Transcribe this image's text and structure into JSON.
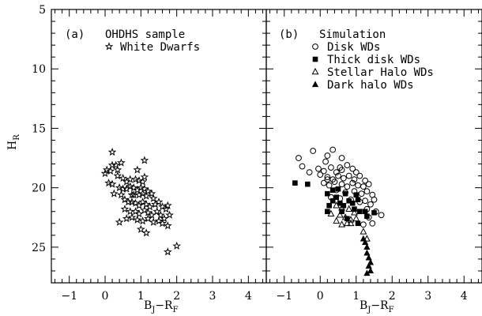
{
  "chart_data": [
    {
      "panel_label": "(a)",
      "type": "scatter",
      "xlabel": "B_J−R_F",
      "ylabel": "H_R",
      "xlim": [
        -1.5,
        4.5
      ],
      "ylim": [
        28,
        5
      ],
      "y_inverted": true,
      "x_ticks": [
        "−1",
        "0",
        "1",
        "2",
        "3",
        "4"
      ],
      "y_ticks": [
        "5",
        "10",
        "15",
        "20",
        "25"
      ],
      "legend": {
        "title": "OHDHS sample",
        "entries": [
          "White Dwarfs"
        ]
      },
      "series": [
        {
          "name": "White Dwarfs",
          "marker": "star-open",
          "points": [
            [
              0.2,
              17.0
            ],
            [
              0.45,
              17.9
            ],
            [
              0.2,
              18.1
            ],
            [
              0.3,
              18.1
            ],
            [
              0.05,
              18.5
            ],
            [
              0.15,
              18.6
            ],
            [
              0.0,
              18.8
            ],
            [
              0.35,
              18.5
            ],
            [
              1.1,
              17.7
            ],
            [
              0.35,
              19.0
            ],
            [
              0.5,
              19.2
            ],
            [
              0.6,
              19.5
            ],
            [
              0.7,
              19.3
            ],
            [
              0.1,
              19.6
            ],
            [
              0.2,
              19.7
            ],
            [
              0.85,
              19.3
            ],
            [
              0.95,
              19.4
            ],
            [
              1.05,
              19.5
            ],
            [
              1.1,
              19.1
            ],
            [
              0.9,
              18.5
            ],
            [
              0.4,
              20.0
            ],
            [
              0.5,
              20.1
            ],
            [
              0.6,
              20.1
            ],
            [
              0.7,
              19.9
            ],
            [
              0.8,
              20.0
            ],
            [
              0.9,
              20.2
            ],
            [
              1.0,
              20.0
            ],
            [
              1.1,
              20.1
            ],
            [
              1.2,
              20.3
            ],
            [
              0.75,
              20.6
            ],
            [
              0.8,
              20.6
            ],
            [
              0.95,
              20.6
            ],
            [
              1.05,
              20.5
            ],
            [
              1.15,
              20.7
            ],
            [
              1.3,
              20.5
            ],
            [
              1.35,
              20.9
            ],
            [
              0.25,
              20.5
            ],
            [
              0.45,
              20.6
            ],
            [
              0.55,
              21.0
            ],
            [
              0.65,
              21.2
            ],
            [
              0.75,
              21.2
            ],
            [
              0.85,
              21.3
            ],
            [
              0.95,
              21.5
            ],
            [
              1.05,
              21.2
            ],
            [
              1.15,
              21.4
            ],
            [
              1.25,
              21.6
            ],
            [
              1.4,
              21.4
            ],
            [
              1.5,
              21.2
            ],
            [
              1.6,
              21.6
            ],
            [
              1.7,
              21.8
            ],
            [
              1.75,
              21.5
            ],
            [
              0.55,
              21.8
            ],
            [
              0.7,
              22.0
            ],
            [
              0.85,
              22.0
            ],
            [
              0.95,
              22.2
            ],
            [
              1.1,
              21.9
            ],
            [
              1.2,
              22.1
            ],
            [
              1.3,
              22.3
            ],
            [
              1.45,
              22.0
            ],
            [
              1.55,
              22.3
            ],
            [
              1.65,
              22.6
            ],
            [
              0.6,
              22.6
            ],
            [
              0.75,
              22.5
            ],
            [
              0.9,
              22.7
            ],
            [
              1.05,
              22.8
            ],
            [
              1.2,
              22.6
            ],
            [
              1.35,
              22.9
            ],
            [
              1.5,
              22.8
            ],
            [
              1.6,
              23.0
            ],
            [
              1.75,
              23.2
            ],
            [
              1.8,
              22.3
            ],
            [
              0.4,
              22.9
            ],
            [
              1.0,
              23.5
            ],
            [
              1.15,
              23.8
            ],
            [
              2.0,
              24.9
            ],
            [
              1.75,
              25.4
            ]
          ]
        }
      ]
    },
    {
      "panel_label": "(b)",
      "type": "scatter",
      "xlabel": "B_J−R_F",
      "ylabel": "",
      "xlim": [
        -1.5,
        4.5
      ],
      "ylim": [
        28,
        5
      ],
      "y_inverted": true,
      "x_ticks": [
        "−1",
        "0",
        "1",
        "2",
        "3",
        "4"
      ],
      "legend": {
        "title": "Simulation",
        "entries": [
          "Disk WDs",
          "Thick disk WDs",
          "Stellar Halo WDs",
          "Dark halo WDs"
        ]
      },
      "series": [
        {
          "name": "Disk WDs",
          "marker": "circle-open",
          "points": [
            [
              -0.6,
              17.5
            ],
            [
              -0.5,
              18.2
            ],
            [
              -0.2,
              16.9
            ],
            [
              0.2,
              17.3
            ],
            [
              0.35,
              16.8
            ],
            [
              0.15,
              17.8
            ],
            [
              0.6,
              17.5
            ],
            [
              -0.3,
              18.7
            ],
            [
              -0.05,
              18.4
            ],
            [
              0.1,
              18.6
            ],
            [
              0.3,
              18.3
            ],
            [
              0.45,
              18.7
            ],
            [
              0.55,
              18.3
            ],
            [
              0.75,
              18.1
            ],
            [
              0.9,
              18.4
            ],
            [
              1.0,
              18.7
            ],
            [
              0.2,
              19.1
            ],
            [
              0.35,
              19.3
            ],
            [
              0.5,
              19.0
            ],
            [
              0.65,
              19.2
            ],
            [
              0.8,
              19.0
            ],
            [
              0.95,
              19.3
            ],
            [
              1.1,
              19.0
            ],
            [
              1.25,
              19.4
            ],
            [
              0.1,
              19.6
            ],
            [
              0.25,
              19.8
            ],
            [
              0.4,
              19.5
            ],
            [
              0.6,
              19.7
            ],
            [
              0.75,
              19.9
            ],
            [
              0.9,
              19.6
            ],
            [
              1.05,
              19.8
            ],
            [
              1.2,
              19.9
            ],
            [
              1.35,
              19.7
            ],
            [
              0.45,
              20.2
            ],
            [
              0.7,
              20.4
            ],
            [
              0.95,
              20.3
            ],
            [
              1.15,
              20.5
            ],
            [
              1.3,
              20.3
            ],
            [
              1.45,
              20.6
            ],
            [
              0.55,
              20.9
            ],
            [
              0.85,
              21.0
            ],
            [
              1.1,
              21.2
            ],
            [
              1.25,
              21.1
            ],
            [
              1.4,
              21.4
            ],
            [
              1.5,
              21.0
            ],
            [
              1.3,
              21.8
            ],
            [
              1.55,
              22.0
            ],
            [
              1.7,
              22.3
            ],
            [
              1.35,
              22.5
            ],
            [
              1.45,
              23.0
            ],
            [
              1.2,
              23.1
            ],
            [
              0.3,
              20.8
            ],
            [
              0.2,
              19.3
            ],
            [
              0.0,
              18.9
            ],
            [
              0.6,
              18.5
            ]
          ]
        },
        {
          "name": "Thick disk WDs",
          "marker": "square-filled",
          "points": [
            [
              -0.7,
              19.6
            ],
            [
              -0.35,
              19.7
            ],
            [
              0.35,
              20.2
            ],
            [
              0.5,
              20.1
            ],
            [
              0.2,
              20.5
            ],
            [
              0.45,
              20.8
            ],
            [
              0.7,
              20.5
            ],
            [
              0.35,
              21.1
            ],
            [
              0.25,
              21.5
            ],
            [
              0.55,
              21.3
            ],
            [
              0.8,
              21.1
            ],
            [
              0.9,
              21.3
            ],
            [
              1.0,
              20.6
            ],
            [
              1.05,
              21.0
            ],
            [
              0.65,
              21.5
            ],
            [
              0.95,
              21.8
            ],
            [
              1.1,
              22.0
            ],
            [
              1.25,
              22.0
            ],
            [
              1.5,
              22.1
            ],
            [
              0.6,
              22.0
            ],
            [
              0.2,
              22.0
            ],
            [
              1.05,
              23.0
            ],
            [
              0.75,
              22.6
            ],
            [
              1.3,
              22.4
            ]
          ]
        },
        {
          "name": "Stellar Halo WDs",
          "marker": "triangle-open",
          "points": [
            [
              0.45,
              21.5
            ],
            [
              0.6,
              21.7
            ],
            [
              0.8,
              21.8
            ],
            [
              0.95,
              22.1
            ],
            [
              0.3,
              22.2
            ],
            [
              0.55,
              22.3
            ],
            [
              0.7,
              22.5
            ],
            [
              0.85,
              22.7
            ],
            [
              1.0,
              22.6
            ],
            [
              0.45,
              22.8
            ],
            [
              0.6,
              23.1
            ],
            [
              0.85,
              23.0
            ],
            [
              1.2,
              23.7
            ],
            [
              1.3,
              24.3
            ],
            [
              0.75,
              23.0
            ]
          ]
        },
        {
          "name": "Dark halo WDs",
          "marker": "triangle-filled",
          "points": [
            [
              1.2,
              24.3
            ],
            [
              1.25,
              24.6
            ],
            [
              1.3,
              25.0
            ],
            [
              1.3,
              25.5
            ],
            [
              1.35,
              25.9
            ],
            [
              1.4,
              26.3
            ],
            [
              1.35,
              26.6
            ],
            [
              1.4,
              27.0
            ],
            [
              1.3,
              27.2
            ]
          ]
        }
      ]
    }
  ]
}
